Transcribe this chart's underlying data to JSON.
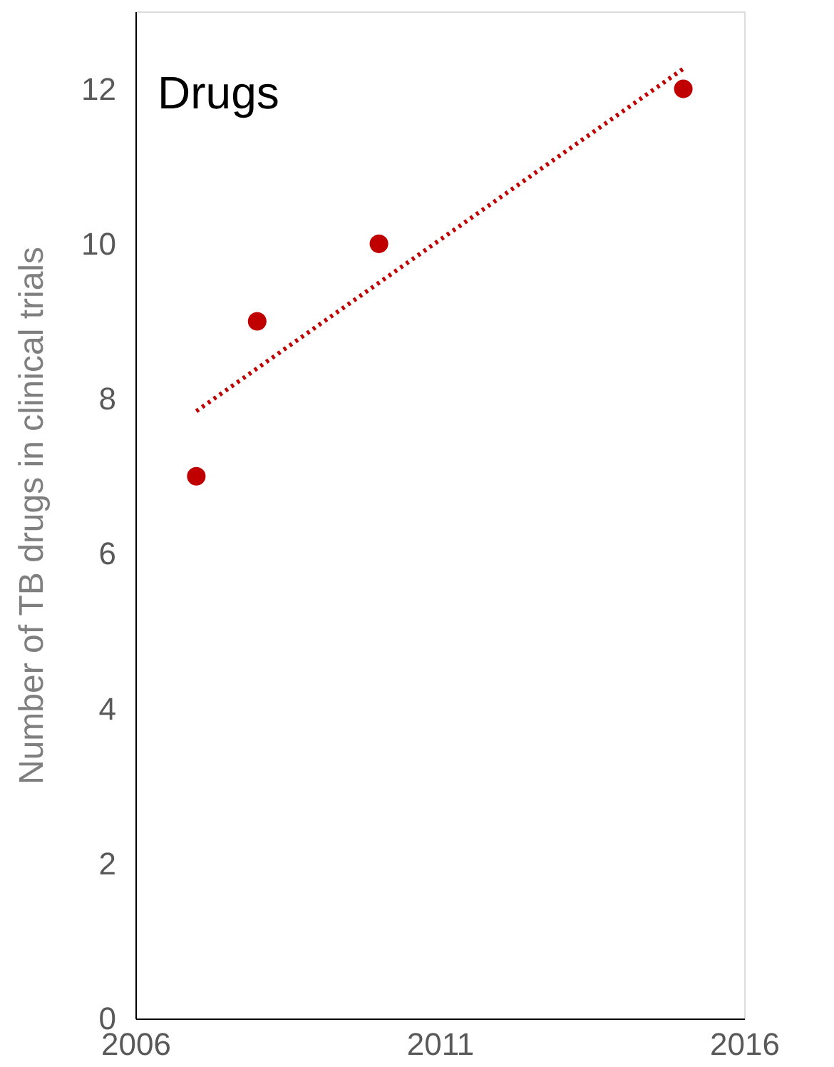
{
  "chart_data": {
    "type": "scatter",
    "title": "Drugs",
    "ylabel": "Number of TB drugs in clinical trials",
    "x": [
      2007,
      2008,
      2010,
      2015
    ],
    "series": [
      {
        "color": "#c00000",
        "values": [
          7,
          9,
          10,
          12
        ],
        "marker": "circle"
      },
      {
        "type": "line",
        "color": "#c00000",
        "x": [
          2007,
          2015
        ],
        "values": [
          7.84,
          12.26
        ],
        "line_style": "dotted"
      }
    ],
    "xlim": [
      2006,
      2016
    ],
    "xticks": [
      2006,
      2011,
      2016
    ],
    "ylim": [
      0,
      13
    ],
    "yticks": [
      0,
      2,
      4,
      6,
      8,
      10,
      12
    ],
    "grid": false
  }
}
